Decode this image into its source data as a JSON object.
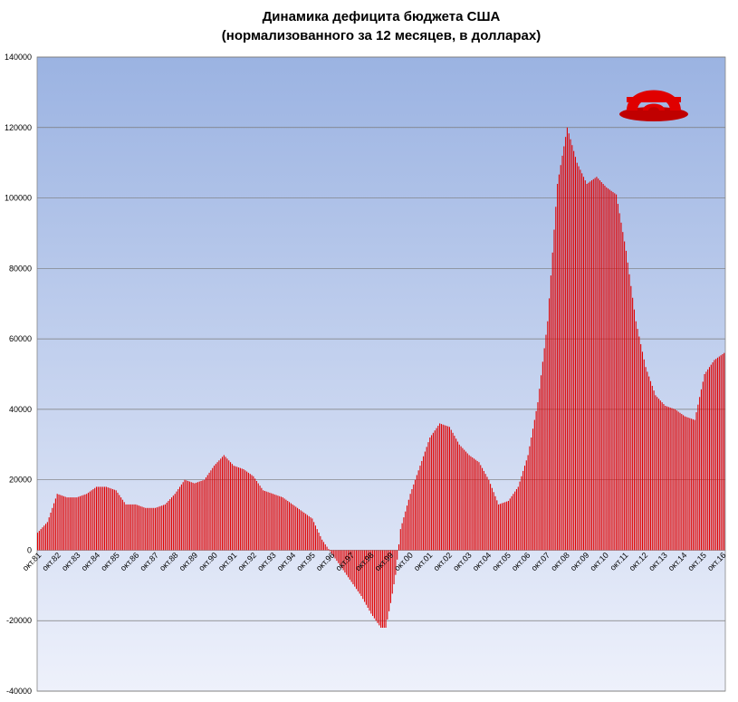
{
  "chart_data": {
    "type": "bar",
    "title": "Динамика дефицита бюджета США",
    "subtitle": "(нормализованного за 12 месяцев, в долларах)",
    "xlabel": "",
    "ylabel": "",
    "ylim": [
      -40000,
      140000
    ],
    "yticks": [
      -40000,
      -20000,
      0,
      20000,
      40000,
      60000,
      80000,
      100000,
      120000,
      140000
    ],
    "grid": true,
    "legend": "none",
    "bar_color": "#e00000",
    "background_gradient": [
      "#9bb3e2",
      "#eef1fb"
    ],
    "categories": [
      "окт.81",
      "окт.82",
      "окт.83",
      "окт.84",
      "окт.85",
      "окт.86",
      "окт.87",
      "окт.88",
      "окт.89",
      "окт.90",
      "окт.91",
      "окт.92",
      "окт.93",
      "окт.94",
      "окт.95",
      "окт.96",
      "окт.97",
      "окт.98",
      "окт.99",
      "окт.00",
      "окт.01",
      "окт.02",
      "окт.03",
      "окт.04",
      "окт.05",
      "окт.06",
      "окт.07",
      "окт.08",
      "окт.09",
      "окт.10",
      "окт.11",
      "окт.12",
      "окт.13",
      "окт.14",
      "окт.15",
      "окт.16"
    ],
    "anchors": [
      [
        0,
        5000
      ],
      [
        6,
        8000
      ],
      [
        12,
        16000
      ],
      [
        18,
        15000
      ],
      [
        24,
        15000
      ],
      [
        30,
        16000
      ],
      [
        36,
        18000
      ],
      [
        42,
        18000
      ],
      [
        48,
        17000
      ],
      [
        54,
        13000
      ],
      [
        60,
        13000
      ],
      [
        66,
        12000
      ],
      [
        72,
        12000
      ],
      [
        78,
        13000
      ],
      [
        84,
        16000
      ],
      [
        90,
        20000
      ],
      [
        96,
        19000
      ],
      [
        102,
        20000
      ],
      [
        108,
        24000
      ],
      [
        114,
        27000
      ],
      [
        120,
        24000
      ],
      [
        126,
        23000
      ],
      [
        132,
        21000
      ],
      [
        138,
        17000
      ],
      [
        144,
        16000
      ],
      [
        150,
        15000
      ],
      [
        156,
        13000
      ],
      [
        162,
        11000
      ],
      [
        168,
        9000
      ],
      [
        174,
        3000
      ],
      [
        180,
        -1000
      ],
      [
        186,
        -5000
      ],
      [
        192,
        -9000
      ],
      [
        198,
        -13000
      ],
      [
        204,
        -18000
      ],
      [
        210,
        -22000
      ],
      [
        213,
        -22000
      ],
      [
        216,
        -15000
      ],
      [
        219,
        -7000
      ],
      [
        222,
        6000
      ],
      [
        228,
        16000
      ],
      [
        234,
        24000
      ],
      [
        240,
        32000
      ],
      [
        246,
        36000
      ],
      [
        252,
        35000
      ],
      [
        258,
        30000
      ],
      [
        264,
        27000
      ],
      [
        270,
        25000
      ],
      [
        276,
        20000
      ],
      [
        282,
        13000
      ],
      [
        288,
        14000
      ],
      [
        294,
        18000
      ],
      [
        300,
        27000
      ],
      [
        306,
        42000
      ],
      [
        312,
        65000
      ],
      [
        318,
        104000
      ],
      [
        324,
        120000
      ],
      [
        330,
        110000
      ],
      [
        336,
        104000
      ],
      [
        342,
        106000
      ],
      [
        348,
        103000
      ],
      [
        354,
        101000
      ],
      [
        360,
        85000
      ],
      [
        366,
        65000
      ],
      [
        372,
        52000
      ],
      [
        378,
        44000
      ],
      [
        384,
        41000
      ],
      [
        390,
        40000
      ],
      [
        396,
        38000
      ],
      [
        402,
        37000
      ],
      [
        408,
        50000
      ],
      [
        414,
        54000
      ],
      [
        420,
        56000
      ]
    ],
    "logo": "red-arch-logo"
  }
}
